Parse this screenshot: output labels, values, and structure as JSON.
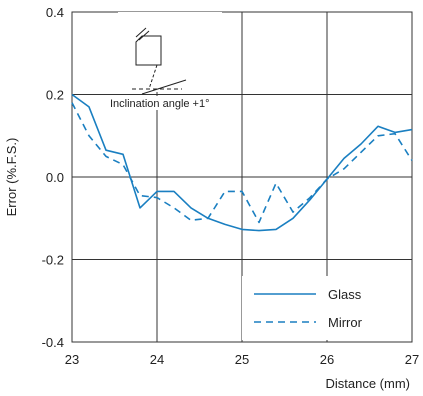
{
  "chart_data": {
    "type": "line",
    "title": "",
    "xlabel": "Distance (mm)",
    "ylabel": "Error (%.F.S.)",
    "xlim": [
      23,
      27
    ],
    "ylim": [
      -0.4,
      0.4
    ],
    "x_ticks": [
      "23",
      "24",
      "25",
      "26",
      "27"
    ],
    "y_ticks": [
      "0.4",
      "0.2",
      "0.0",
      "-0.2",
      "-0.4"
    ],
    "grid": true,
    "legend_position": "bottom-right",
    "annotation": "Inclination angle +1°",
    "series": [
      {
        "name": "Glass",
        "style": "solid",
        "color": "#1a7fc1",
        "x": [
          23.0,
          23.2,
          23.4,
          23.6,
          23.8,
          24.0,
          24.2,
          24.4,
          24.6,
          24.8,
          25.0,
          25.2,
          25.4,
          25.6,
          25.8,
          26.0,
          26.2,
          26.4,
          26.6,
          26.8,
          27.0
        ],
        "y": [
          0.2,
          0.17,
          0.065,
          0.055,
          -0.075,
          -0.035,
          -0.035,
          -0.075,
          -0.1,
          -0.115,
          -0.127,
          -0.13,
          -0.127,
          -0.1,
          -0.055,
          -0.005,
          0.045,
          0.08,
          0.123,
          0.108,
          0.115
        ]
      },
      {
        "name": "Mirror",
        "style": "dashed",
        "color": "#1a7fc1",
        "x": [
          23.0,
          23.2,
          23.4,
          23.6,
          23.8,
          24.0,
          24.2,
          24.4,
          24.6,
          24.8,
          25.0,
          25.2,
          25.4,
          25.6,
          25.8,
          26.0,
          26.2,
          26.4,
          26.6,
          26.8,
          27.0
        ],
        "y": [
          0.18,
          0.1,
          0.05,
          0.03,
          -0.045,
          -0.05,
          -0.075,
          -0.105,
          -0.1,
          -0.035,
          -0.035,
          -0.11,
          -0.015,
          -0.085,
          -0.05,
          -0.005,
          0.02,
          0.06,
          0.1,
          0.105,
          0.04
        ]
      }
    ]
  }
}
